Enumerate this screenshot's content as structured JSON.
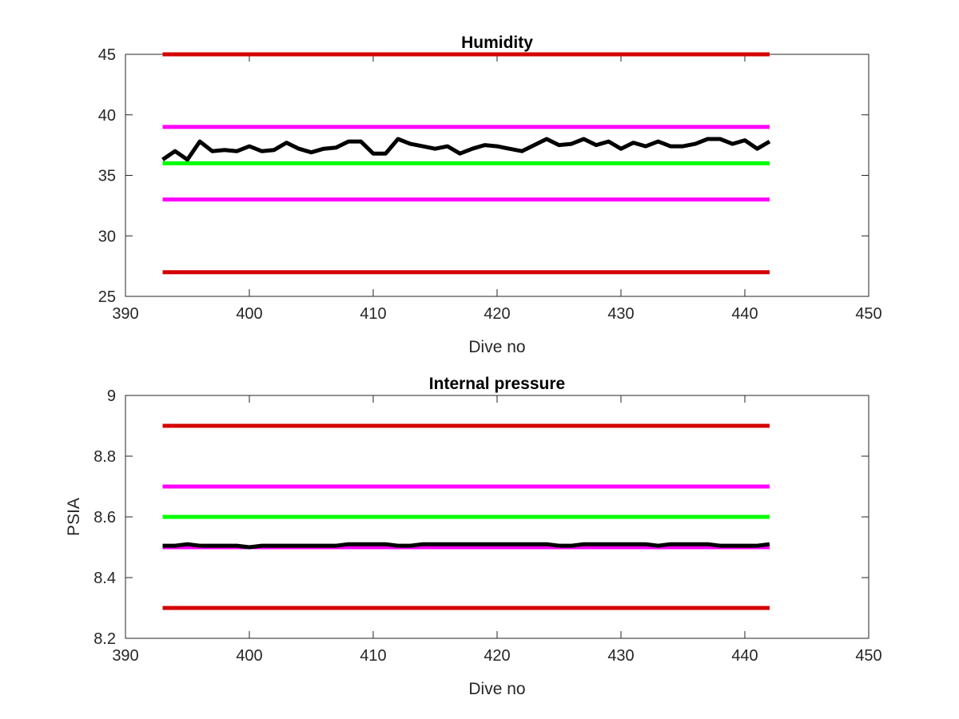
{
  "chart_data": [
    {
      "type": "line",
      "title": "Humidity",
      "xlabel": "Dive no",
      "ylabel": "",
      "xlim": [
        390,
        450
      ],
      "ylim": [
        25,
        45
      ],
      "xticks": [
        390,
        400,
        410,
        420,
        430,
        440,
        450
      ],
      "yticks": [
        25,
        30,
        35,
        40,
        45
      ],
      "xtick_labels": [
        "390",
        "400",
        "410",
        "420",
        "430",
        "440",
        "450"
      ],
      "ytick_labels": [
        "25",
        "30",
        "35",
        "40",
        "45"
      ],
      "grid": false,
      "reference_lines": [
        {
          "y": 45,
          "x": [
            393,
            442
          ],
          "color": "#d40000"
        },
        {
          "y": 39,
          "x": [
            393,
            442
          ],
          "color": "#ff00ff"
        },
        {
          "y": 36,
          "x": [
            393,
            442
          ],
          "color": "#00ff00"
        },
        {
          "y": 33,
          "x": [
            393,
            442
          ],
          "color": "#ff00ff"
        },
        {
          "y": 27,
          "x": [
            393,
            442
          ],
          "color": "#d40000"
        }
      ],
      "series": [
        {
          "color": "#000000",
          "x": [
            393,
            394,
            395,
            396,
            397,
            398,
            399,
            400,
            401,
            402,
            403,
            404,
            405,
            406,
            407,
            408,
            409,
            410,
            411,
            412,
            413,
            414,
            415,
            416,
            417,
            418,
            419,
            420,
            421,
            422,
            423,
            424,
            425,
            426,
            427,
            428,
            429,
            430,
            431,
            432,
            433,
            434,
            435,
            436,
            437,
            438,
            439,
            440,
            441,
            442
          ],
          "values": [
            36.3,
            37.0,
            36.3,
            37.8,
            37.0,
            37.1,
            37.0,
            37.4,
            37.0,
            37.1,
            37.7,
            37.2,
            36.9,
            37.2,
            37.3,
            37.8,
            37.8,
            36.8,
            36.8,
            38.0,
            37.6,
            37.4,
            37.2,
            37.4,
            36.8,
            37.2,
            37.5,
            37.4,
            37.2,
            37.0,
            37.5,
            38.0,
            37.5,
            37.6,
            38.0,
            37.5,
            37.8,
            37.2,
            37.7,
            37.4,
            37.8,
            37.4,
            37.4,
            37.6,
            38.0,
            38.0,
            37.6,
            37.9,
            37.2,
            37.8
          ]
        }
      ]
    },
    {
      "type": "line",
      "title": "Internal pressure",
      "xlabel": "Dive no",
      "ylabel": "PSIA",
      "xlim": [
        390,
        450
      ],
      "ylim": [
        8.2,
        9
      ],
      "xticks": [
        390,
        400,
        410,
        420,
        430,
        440,
        450
      ],
      "yticks": [
        8.2,
        8.4,
        8.6,
        8.8,
        9
      ],
      "xtick_labels": [
        "390",
        "400",
        "410",
        "420",
        "430",
        "440",
        "450"
      ],
      "ytick_labels": [
        "8.2",
        "8.4",
        "8.6",
        "8.8",
        "9"
      ],
      "grid": false,
      "reference_lines": [
        {
          "y": 8.9,
          "x": [
            393,
            442
          ],
          "color": "#d40000"
        },
        {
          "y": 8.7,
          "x": [
            393,
            442
          ],
          "color": "#ff00ff"
        },
        {
          "y": 8.6,
          "x": [
            393,
            442
          ],
          "color": "#00ff00"
        },
        {
          "y": 8.5,
          "x": [
            393,
            442
          ],
          "color": "#ff00ff"
        },
        {
          "y": 8.3,
          "x": [
            393,
            442
          ],
          "color": "#d40000"
        }
      ],
      "series": [
        {
          "color": "#000000",
          "x": [
            393,
            394,
            395,
            396,
            397,
            398,
            399,
            400,
            401,
            402,
            403,
            404,
            405,
            406,
            407,
            408,
            409,
            410,
            411,
            412,
            413,
            414,
            415,
            416,
            417,
            418,
            419,
            420,
            421,
            422,
            423,
            424,
            425,
            426,
            427,
            428,
            429,
            430,
            431,
            432,
            433,
            434,
            435,
            436,
            437,
            438,
            439,
            440,
            441,
            442
          ],
          "values": [
            8.505,
            8.505,
            8.51,
            8.505,
            8.505,
            8.505,
            8.505,
            8.5,
            8.505,
            8.505,
            8.505,
            8.505,
            8.505,
            8.505,
            8.505,
            8.51,
            8.51,
            8.51,
            8.51,
            8.505,
            8.505,
            8.51,
            8.51,
            8.51,
            8.51,
            8.51,
            8.51,
            8.51,
            8.51,
            8.51,
            8.51,
            8.51,
            8.505,
            8.505,
            8.51,
            8.51,
            8.51,
            8.51,
            8.51,
            8.51,
            8.505,
            8.51,
            8.51,
            8.51,
            8.51,
            8.505,
            8.505,
            8.505,
            8.505,
            8.51
          ]
        }
      ]
    }
  ]
}
